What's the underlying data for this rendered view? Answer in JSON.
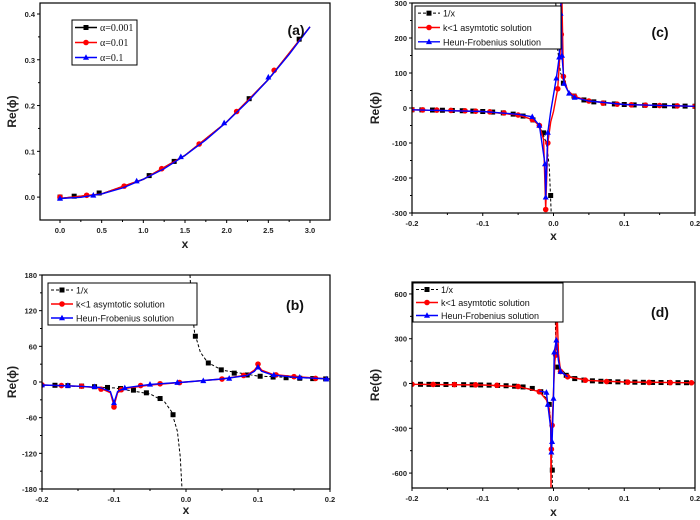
{
  "chart_data": [
    {
      "panel_label": "(a)",
      "type": "line",
      "xlabel": "x",
      "ylabel": "Re(ϕ)",
      "xlim": [
        -0.24,
        3.24
      ],
      "ylim": [
        -0.05,
        0.424
      ],
      "xticks": [
        "0.0",
        "0.5",
        "1.0",
        "1.5",
        "2.0",
        "2.5",
        "3.0"
      ],
      "yticks": [
        "0.0",
        "0.1",
        "0.2",
        "0.3",
        "0.4"
      ],
      "legend": "top-left",
      "series": [
        {
          "name": "α=0.001",
          "color": "#000000",
          "marker": "square",
          "dash": false,
          "x": [
            0,
            0.17,
            0.47,
            1.07,
            1.37,
            2.27,
            2.87
          ],
          "y": [
            0,
            0.002,
            0.009,
            0.047,
            0.078,
            0.215,
            0.345
          ],
          "curve_x": [
            0,
            0.5,
            1,
            1.5,
            2,
            2.5,
            3
          ],
          "curve_y": [
            -0.003,
            0.007,
            0.039,
            0.091,
            0.164,
            0.257,
            0.372
          ]
        },
        {
          "name": "α=0.01",
          "color": "#ff0000",
          "marker": "circle",
          "dash": false,
          "x": [
            0,
            0.32,
            0.77,
            1.22,
            1.67,
            2.12,
            2.57
          ],
          "y": [
            0,
            0.004,
            0.024,
            0.062,
            0.116,
            0.187,
            0.277
          ],
          "curve_x": [
            0,
            0.5,
            1,
            1.5,
            2,
            2.5,
            3
          ],
          "curve_y": [
            -0.003,
            0.007,
            0.039,
            0.091,
            0.164,
            0.257,
            0.372
          ]
        },
        {
          "name": "α=0.1",
          "color": "#0000ff",
          "marker": "triangle",
          "dash": false,
          "x": [
            0,
            0.4,
            0.92,
            1.45,
            1.97,
            2.5
          ],
          "y": [
            -0.003,
            0.004,
            0.035,
            0.088,
            0.162,
            0.262
          ],
          "curve_x": [
            0,
            0.25,
            0.5,
            0.75,
            1,
            1.25,
            1.5,
            1.75,
            2,
            2.25,
            2.5,
            2.75,
            3
          ],
          "curve_y": [
            -0.003,
            -0.0004,
            0.007,
            0.02,
            0.039,
            0.062,
            0.091,
            0.125,
            0.164,
            0.208,
            0.257,
            0.312,
            0.372
          ]
        }
      ]
    },
    {
      "panel_label": "(c)",
      "type": "line",
      "xlabel": "x",
      "ylabel": "Re(ϕ)",
      "xlim": [
        -0.2,
        0.2
      ],
      "ylim": [
        -300,
        300
      ],
      "xticks": [
        "-0.2",
        "-0.1",
        "0.0",
        "0.1",
        "0.2"
      ],
      "yticks": [
        "-300",
        "-200",
        "-100",
        "0",
        "100",
        "200",
        "300"
      ],
      "legend": "top-left",
      "series": [
        {
          "name": "1/x",
          "color": "#000000",
          "marker": "square",
          "dash": true,
          "x": [
            -0.2,
            -0.186,
            -0.171,
            -0.157,
            -0.143,
            -0.129,
            -0.114,
            -0.1,
            -0.086,
            -0.071,
            -0.057,
            -0.043,
            -0.029,
            -0.014,
            -0.004,
            0.014,
            0.029,
            0.043,
            0.057,
            0.071,
            0.086,
            0.1,
            0.114,
            0.129,
            0.143,
            0.157,
            0.171,
            0.186,
            0.2
          ],
          "y": [
            -5,
            -5.4,
            -5.8,
            -6.4,
            -7,
            -7.8,
            -8.8,
            -10,
            -11.6,
            -14,
            -17.5,
            -23,
            -34,
            -71,
            -250,
            71,
            34,
            23,
            17.5,
            14,
            11.6,
            10,
            8.8,
            7.8,
            7,
            6.4,
            5.8,
            5.4,
            5
          ],
          "curve_x": [
            -0.2,
            -0.1,
            -0.05,
            -0.03,
            -0.02,
            -0.01,
            -0.006,
            -0.0033,
            null,
            0.0033,
            0.006,
            0.01,
            0.02,
            0.03,
            0.05,
            0.1,
            0.2
          ],
          "curve_y": [
            -5,
            -10,
            -20,
            -33,
            -50,
            -100,
            -167,
            -300,
            null,
            300,
            167,
            100,
            50,
            33,
            20,
            10,
            5
          ]
        },
        {
          "name": "k<1 asymtotic solution",
          "color": "#ff0000",
          "marker": "circle",
          "dash": false,
          "x": [
            -0.2,
            -0.185,
            -0.165,
            -0.145,
            -0.125,
            -0.11,
            -0.09,
            -0.07,
            -0.05,
            -0.03,
            -0.02,
            -0.011,
            -0.008,
            0.006,
            0.011,
            0.014,
            0.03,
            0.05,
            0.07,
            0.09,
            0.11,
            0.13,
            0.15,
            0.175,
            0.2
          ],
          "y": [
            -5,
            -5.4,
            -6,
            -7,
            -8,
            -9,
            -11,
            -14,
            -20,
            -33,
            -50,
            -290,
            -100,
            55,
            210,
            90,
            33,
            20,
            14,
            11,
            9,
            8,
            7,
            6,
            5
          ],
          "curve_x": [
            -0.2,
            -0.1,
            -0.05,
            -0.03,
            -0.02,
            -0.014,
            -0.011,
            -0.008,
            -0.004,
            0,
            0.006,
            0.011,
            0.012,
            0.014,
            0.02,
            0.03,
            0.05,
            0.1,
            0.2
          ],
          "curve_y": [
            -5,
            -10,
            -20,
            -33,
            -50,
            -90,
            -290,
            -100,
            -40,
            -10,
            55,
            210,
            300,
            90,
            50,
            33,
            20,
            10,
            5
          ]
        },
        {
          "name": "Heun-Frobenius solution",
          "color": "#0000ff",
          "marker": "triangle",
          "dash": false,
          "x": [
            -0.03,
            -0.02,
            -0.012,
            -0.011,
            -0.008,
            0.004,
            0.008,
            0.01,
            0.012,
            0.015,
            0.022,
            0.03
          ],
          "y": [
            -25,
            -50,
            -160,
            -255,
            -70,
            85,
            145,
            270,
            150,
            70,
            42,
            30
          ],
          "curve_x": [
            -0.2,
            -0.1,
            -0.05,
            -0.03,
            -0.02,
            -0.012,
            -0.011,
            -0.008,
            -0.004,
            0.004,
            0.008,
            0.01,
            0.0105,
            0.012,
            0.015,
            0.022,
            0.03,
            0.05,
            0.1,
            0.2
          ],
          "curve_y": [
            -5,
            -10,
            -18,
            -25,
            -50,
            -160,
            -255,
            -70,
            -10,
            85,
            145,
            270,
            300,
            150,
            70,
            42,
            30,
            20,
            10,
            5
          ]
        }
      ]
    },
    {
      "panel_label": "(b)",
      "type": "line",
      "xlabel": "x",
      "ylabel": "Re(ϕ)",
      "xlim": [
        -0.2,
        0.2
      ],
      "ylim": [
        -180,
        180
      ],
      "xticks": [
        "-0.2",
        "-0.1",
        "0.0",
        "0.1",
        "0.2"
      ],
      "yticks": [
        "-180",
        "-120",
        "-60",
        "0",
        "60",
        "120",
        "180"
      ],
      "legend": "top-left",
      "series": [
        {
          "name": "1/x",
          "color": "#000000",
          "marker": "square",
          "dash": true,
          "x": [
            -0.182,
            -0.164,
            -0.145,
            -0.127,
            -0.109,
            -0.091,
            -0.073,
            -0.055,
            -0.036,
            -0.018,
            0.013,
            0.031,
            0.049,
            0.067,
            0.085,
            0.103,
            0.121,
            0.139,
            0.158,
            0.176,
            0.194
          ],
          "y": [
            -5.5,
            -6.1,
            -6.9,
            -7.9,
            -9.2,
            -11,
            -13.7,
            -18.2,
            -27.8,
            -55,
            77,
            32,
            20.4,
            14.9,
            11.8,
            9.7,
            8.3,
            7.2,
            6.3,
            5.7,
            5.2
          ],
          "curve_x": [
            -0.2,
            -0.1,
            -0.05,
            -0.03,
            -0.02,
            -0.012,
            -0.008,
            -0.0056,
            null,
            0.0056,
            0.008,
            0.012,
            0.02,
            0.03,
            0.05,
            0.1,
            0.2
          ],
          "curve_y": [
            -5,
            -10,
            -20,
            -33,
            -50,
            -83,
            -125,
            -180,
            null,
            180,
            125,
            83,
            50,
            33,
            20,
            10,
            5
          ]
        },
        {
          "name": "k<1 asymtotic solution",
          "color": "#ff0000",
          "marker": "circle",
          "dash": false,
          "x": [
            -0.2,
            -0.173,
            -0.145,
            -0.118,
            -0.1,
            -0.09,
            -0.063,
            -0.036,
            -0.009,
            0.05,
            0.08,
            0.1,
            0.125,
            0.15,
            0.18
          ],
          "y": [
            -5,
            -6,
            -7,
            -12,
            -42,
            -13,
            -6,
            -3,
            -1,
            5,
            11,
            30,
            12,
            9,
            6
          ],
          "curve_x": [
            -0.2,
            -0.15,
            -0.12,
            -0.105,
            -0.1,
            -0.095,
            -0.085,
            -0.05,
            0,
            0.05,
            0.085,
            0.095,
            0.1,
            0.105,
            0.12,
            0.15,
            0.2
          ],
          "curve_y": [
            -5,
            -7,
            -10,
            -18,
            -40,
            -18,
            -11,
            -5,
            0,
            5,
            12,
            20,
            28,
            20,
            13,
            9,
            5
          ]
        },
        {
          "name": "Heun-Frobenius solution",
          "color": "#0000ff",
          "marker": "triangle",
          "dash": false,
          "x": [
            -0.2,
            -0.164,
            -0.127,
            -0.1,
            -0.085,
            -0.05,
            -0.012,
            0.024,
            0.06,
            0.1,
            0.122,
            0.158,
            0.195
          ],
          "y": [
            -5,
            -6,
            -8,
            -35,
            -10,
            -4,
            -1,
            2,
            6,
            25,
            12,
            8,
            5
          ],
          "curve_x": [
            -0.2,
            -0.15,
            -0.12,
            -0.105,
            -0.1,
            -0.095,
            -0.085,
            -0.05,
            0,
            0.05,
            0.085,
            0.095,
            0.1,
            0.105,
            0.12,
            0.15,
            0.2
          ],
          "curve_y": [
            -5,
            -7,
            -9,
            -16,
            -35,
            -16,
            -10,
            -4,
            0,
            5,
            11,
            18,
            25,
            18,
            12,
            8,
            5
          ]
        }
      ]
    },
    {
      "panel_label": "(d)",
      "type": "line",
      "xlabel": "x",
      "ylabel": "Re(ϕ)",
      "xlim": [
        -0.2,
        0.2
      ],
      "ylim": [
        -700,
        680
      ],
      "xticks": [
        "-0.2",
        "-0.1",
        "0.0",
        "0.1",
        "0.2"
      ],
      "yticks": [
        "-600",
        "-300",
        "0",
        "300",
        "600"
      ],
      "legend": "top-left",
      "series": [
        {
          "name": "1/x",
          "color": "#000000",
          "marker": "square",
          "dash": true,
          "x": [
            -0.188,
            -0.176,
            -0.164,
            -0.152,
            -0.14,
            -0.127,
            -0.115,
            -0.103,
            -0.091,
            -0.079,
            -0.067,
            -0.055,
            -0.043,
            -0.03,
            -0.018,
            -0.006,
            -0.0017,
            0.006,
            0.018,
            0.03,
            0.043,
            0.055,
            0.067,
            0.079,
            0.091,
            0.103,
            0.115,
            0.127,
            0.14,
            0.152,
            0.164,
            0.176,
            0.188
          ],
          "y": [
            -5.3,
            -5.7,
            -6.1,
            -6.6,
            -7.1,
            -7.9,
            -8.7,
            -9.7,
            -11,
            -12.7,
            -15,
            -18,
            -23,
            -33,
            -55,
            -140,
            -580,
            110,
            55,
            33,
            23,
            18,
            15,
            12.7,
            11,
            9.7,
            8.7,
            7.9,
            7.1,
            6.6,
            6.1,
            5.7,
            5.3
          ],
          "curve_x": [
            -0.2,
            -0.1,
            -0.05,
            -0.02,
            -0.01,
            -0.005,
            -0.003,
            -0.0014,
            null,
            0.0015,
            0.003,
            0.005,
            0.01,
            0.02,
            0.05,
            0.1,
            0.2
          ],
          "curve_y": [
            -5,
            -10,
            -20,
            -50,
            -100,
            -200,
            -333,
            -700,
            null,
            680,
            333,
            200,
            100,
            50,
            20,
            10,
            5
          ]
        },
        {
          "name": "k<1 asymtotic solution",
          "color": "#ff0000",
          "marker": "circle",
          "dash": false,
          "x": [
            -0.2,
            -0.17,
            -0.14,
            -0.11,
            -0.08,
            -0.05,
            -0.02,
            -0.003,
            -0.002,
            0.003,
            0.005,
            0.01,
            0.02,
            0.045,
            0.075,
            0.105,
            0.135,
            0.165,
            0.195
          ],
          "y": [
            -5,
            -6,
            -7,
            -9,
            -12,
            -20,
            -55,
            -440,
            -280,
            190,
            500,
            80,
            45,
            22,
            13,
            9,
            7,
            6,
            5
          ],
          "curve_x": [
            -0.2,
            -0.1,
            -0.05,
            -0.02,
            -0.01,
            -0.006,
            -0.004,
            -0.0035,
            -0.003,
            -0.002,
            0,
            0.002,
            0.003,
            0.004,
            0.005,
            0.007,
            0.01,
            0.02,
            0.05,
            0.1,
            0.2
          ],
          "curve_y": [
            -5,
            -10,
            -20,
            -55,
            -110,
            -170,
            -300,
            -700,
            -440,
            -280,
            -50,
            150,
            190,
            400,
            500,
            200,
            80,
            45,
            20,
            10,
            5
          ]
        },
        {
          "name": "Heun-Frobenius solution",
          "color": "#0000ff",
          "marker": "triangle",
          "dash": false,
          "x": [
            -0.01,
            -0.008,
            -0.003,
            -0.002,
            0,
            0.001,
            0.004,
            0.01
          ],
          "y": [
            -60,
            -140,
            -460,
            -390,
            -100,
            210,
            290,
            80
          ],
          "curve_x": [
            -0.02,
            -0.01,
            -0.008,
            -0.004,
            -0.003,
            -0.002,
            0,
            0.001,
            0.004,
            0.007,
            0.01,
            0.02
          ],
          "curve_y": [
            -50,
            -60,
            -140,
            -300,
            -460,
            -390,
            -100,
            210,
            290,
            150,
            80,
            45
          ]
        }
      ]
    }
  ]
}
